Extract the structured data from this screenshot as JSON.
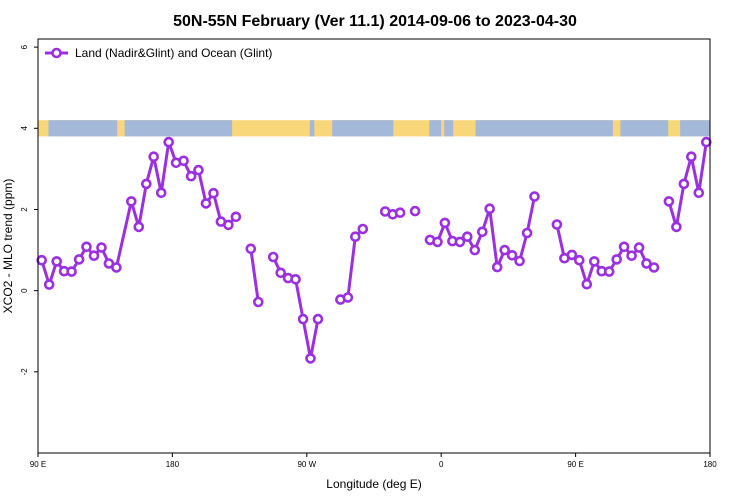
{
  "chart_data": {
    "type": "line",
    "title": "50N-55N February (Ver 11.1)   2014-09-06 to 2023-04-30",
    "xlabel": "Longitude (deg E)",
    "ylabel": "XCO2 - MLO trend (ppm)",
    "xlim": [
      90,
      540
    ],
    "ylim": [
      -4,
      6.2
    ],
    "x_ticks": [
      {
        "value": 90,
        "label": "90 E"
      },
      {
        "value": 180,
        "label": "180"
      },
      {
        "value": 270,
        "label": "90 W"
      },
      {
        "value": 360,
        "label": "0"
      },
      {
        "value": 450,
        "label": "90 E"
      },
      {
        "value": 540,
        "label": "180"
      }
    ],
    "y_ticks": [
      {
        "value": -2,
        "label": "-2"
      },
      {
        "value": 0,
        "label": "0"
      },
      {
        "value": 2,
        "label": "2"
      },
      {
        "value": 4,
        "label": "4"
      },
      {
        "value": 6,
        "label": "6"
      }
    ],
    "legend_position": "top-left",
    "grid": false,
    "land_ocean_band": {
      "y_range": [
        3.8,
        4.2
      ],
      "land_color": "#F8D77A",
      "ocean_color": "#A4B8D9",
      "ocean_segments": [
        [
          97,
          143
        ],
        [
          148,
          220
        ],
        [
          272,
          275
        ],
        [
          287,
          328
        ],
        [
          352,
          360
        ],
        [
          362,
          368
        ],
        [
          383,
          475
        ],
        [
          480,
          512
        ],
        [
          520,
          540
        ]
      ]
    },
    "series": [
      {
        "name": "Land (Nadir&Glint) and Ocean (Glint)",
        "color": "#9B30E0",
        "segments": [
          [
            [
              92.5,
              0.75
            ],
            [
              97.5,
              0.15
            ],
            [
              102.5,
              0.72
            ],
            [
              107.5,
              0.48
            ],
            [
              112.5,
              0.47
            ],
            [
              117.5,
              0.77
            ],
            [
              122.5,
              1.08
            ],
            [
              127.5,
              0.86
            ],
            [
              132.5,
              1.06
            ],
            [
              137.5,
              0.67
            ],
            [
              142.5,
              0.57
            ],
            [
              152.5,
              2.2
            ],
            [
              157.5,
              1.57
            ],
            [
              162.5,
              2.63
            ],
            [
              167.5,
              3.3
            ],
            [
              172.5,
              2.41
            ],
            [
              177.5,
              3.66
            ],
            [
              182.5,
              3.15
            ],
            [
              187.5,
              3.2
            ],
            [
              192.5,
              2.82
            ],
            [
              197.5,
              2.97
            ],
            [
              202.5,
              2.15
            ],
            [
              207.5,
              2.4
            ],
            [
              212.5,
              1.7
            ],
            [
              217.5,
              1.62
            ],
            [
              222.5,
              1.82
            ]
          ],
          [
            [
              232.5,
              1.03
            ],
            [
              237.5,
              -0.28
            ]
          ],
          [
            [
              247.5,
              0.83
            ],
            [
              252.5,
              0.44
            ],
            [
              257.5,
              0.31
            ],
            [
              262.5,
              0.28
            ],
            [
              267.5,
              -0.7
            ],
            [
              272.5,
              -1.67
            ],
            [
              277.5,
              -0.7
            ]
          ],
          [
            [
              292.5,
              -0.22
            ],
            [
              297.5,
              -0.17
            ],
            [
              302.5,
              1.33
            ],
            [
              307.5,
              1.52
            ]
          ],
          [
            [
              322.5,
              1.95
            ],
            [
              327.5,
              1.88
            ],
            [
              332.5,
              1.92
            ]
          ],
          [
            [
              342.5,
              1.96
            ]
          ],
          [
            [
              352.5,
              1.25
            ],
            [
              357.5,
              1.2
            ],
            [
              362.5,
              1.67
            ],
            [
              367.5,
              1.22
            ],
            [
              372.5,
              1.2
            ],
            [
              377.5,
              1.33
            ],
            [
              382.5,
              1.0
            ],
            [
              387.5,
              1.45
            ],
            [
              392.5,
              2.02
            ],
            [
              397.5,
              0.58
            ],
            [
              402.5,
              1.0
            ],
            [
              407.5,
              0.87
            ],
            [
              412.5,
              0.73
            ],
            [
              417.5,
              1.42
            ],
            [
              422.5,
              2.32
            ]
          ],
          [
            [
              437.5,
              1.63
            ],
            [
              442.5,
              0.8
            ],
            [
              447.5,
              0.88
            ],
            [
              452.5,
              0.75
            ],
            [
              457.5,
              0.16
            ],
            [
              462.5,
              0.72
            ],
            [
              467.5,
              0.48
            ],
            [
              472.5,
              0.47
            ],
            [
              477.5,
              0.77
            ],
            [
              482.5,
              1.08
            ],
            [
              487.5,
              0.86
            ],
            [
              492.5,
              1.06
            ],
            [
              497.5,
              0.67
            ],
            [
              502.5,
              0.57
            ]
          ],
          [
            [
              512.5,
              2.2
            ],
            [
              517.5,
              1.57
            ],
            [
              522.5,
              2.63
            ],
            [
              527.5,
              3.3
            ],
            [
              532.5,
              2.41
            ],
            [
              537.5,
              3.66
            ]
          ]
        ]
      }
    ]
  }
}
